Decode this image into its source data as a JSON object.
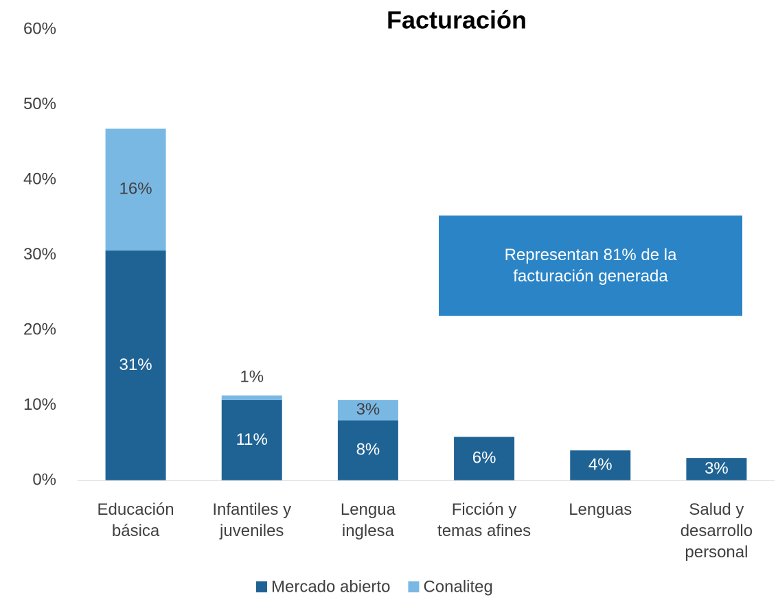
{
  "chart_data": {
    "type": "stacked_bar",
    "title": "Facturación",
    "categories": [
      "Educación básica",
      "Infantiles y juveniles",
      "Lengua inglesa",
      "Ficción y temas afines",
      "Lenguas",
      "Salud y desarrollo personal"
    ],
    "series": [
      {
        "name": "Mercado abierto",
        "color": "#1f6395",
        "values": [
          30.6,
          10.7,
          8.0,
          5.8,
          4.0,
          3.0
        ],
        "value_labels": [
          "31%",
          "11%",
          "8%",
          "6%",
          "4%",
          "3%"
        ]
      },
      {
        "name": "Conaliteg",
        "color": "#7ab8e4",
        "values": [
          16.2,
          0.6,
          2.7,
          null,
          null,
          null
        ],
        "value_labels": [
          "16%",
          "1%",
          "3%",
          null,
          null,
          null
        ]
      }
    ],
    "ylim": [
      0,
      60
    ],
    "yticks": [
      {
        "value": 0,
        "label": "0%"
      },
      {
        "value": 10,
        "label": "10%"
      },
      {
        "value": 20,
        "label": "20%"
      },
      {
        "value": 30,
        "label": "30%"
      },
      {
        "value": 40,
        "label": "40%"
      },
      {
        "value": 50,
        "label": "50%"
      },
      {
        "value": 60,
        "label": "60%"
      }
    ],
    "annotation": "Representan 81% de la facturación generada",
    "legend": "bottom"
  }
}
